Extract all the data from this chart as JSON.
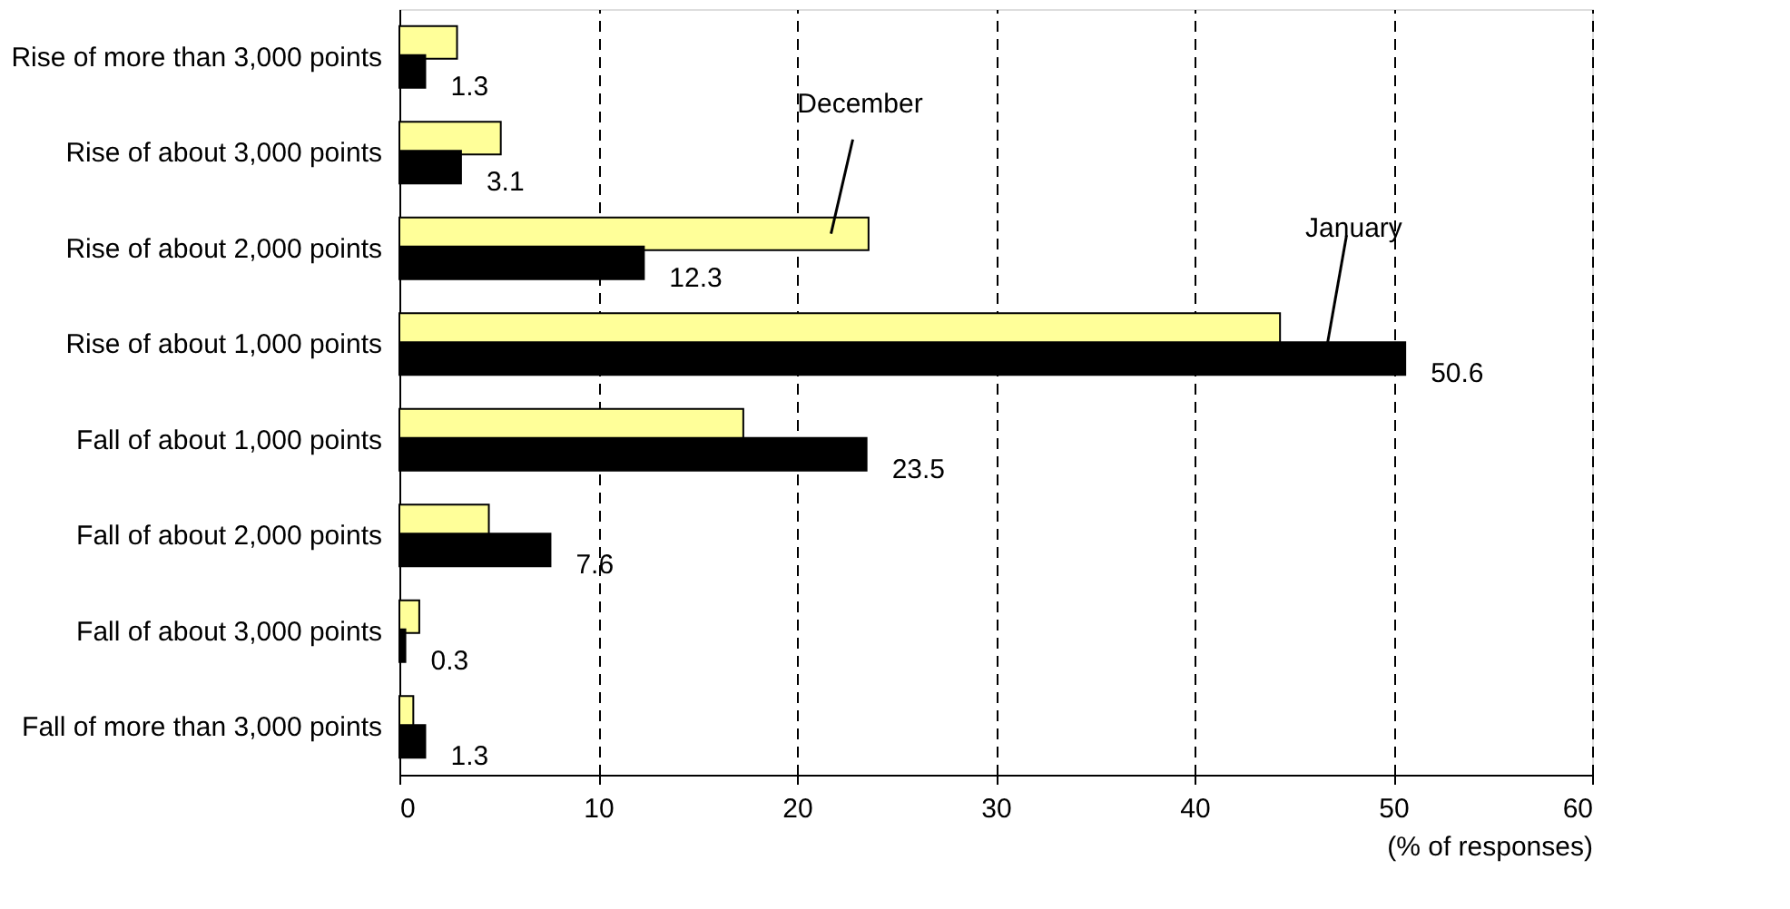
{
  "chart_data": {
    "type": "bar",
    "orientation": "horizontal",
    "xlabel": "(% of responses)",
    "categories": [
      "Rise of more than 3,000 points",
      "Rise of about 3,000 points",
      "Rise of about 2,000 points",
      "Rise of about 1,000 points",
      "Fall of about 1,000 points",
      "Fall of about 2,000 points",
      "Fall of about 3,000 points",
      "Fall of more than 3,000 points"
    ],
    "series": [
      {
        "name": "December",
        "color": "#ffff99",
        "values": [
          2.9,
          5.1,
          23.6,
          44.3,
          17.3,
          4.5,
          1.0,
          0.7
        ]
      },
      {
        "name": "January",
        "color": "#000000",
        "values": [
          1.3,
          3.1,
          12.3,
          50.6,
          23.5,
          7.6,
          0.3,
          1.3
        ],
        "value_labels": [
          "1.3",
          "3.1",
          "12.3",
          "50.6",
          "23.5",
          "7.6",
          "0.3",
          "1.3"
        ]
      }
    ],
    "xlim": [
      0,
      60
    ],
    "xticks": [
      0,
      10,
      20,
      30,
      40,
      50,
      60
    ],
    "grid": "x",
    "legend": false
  }
}
